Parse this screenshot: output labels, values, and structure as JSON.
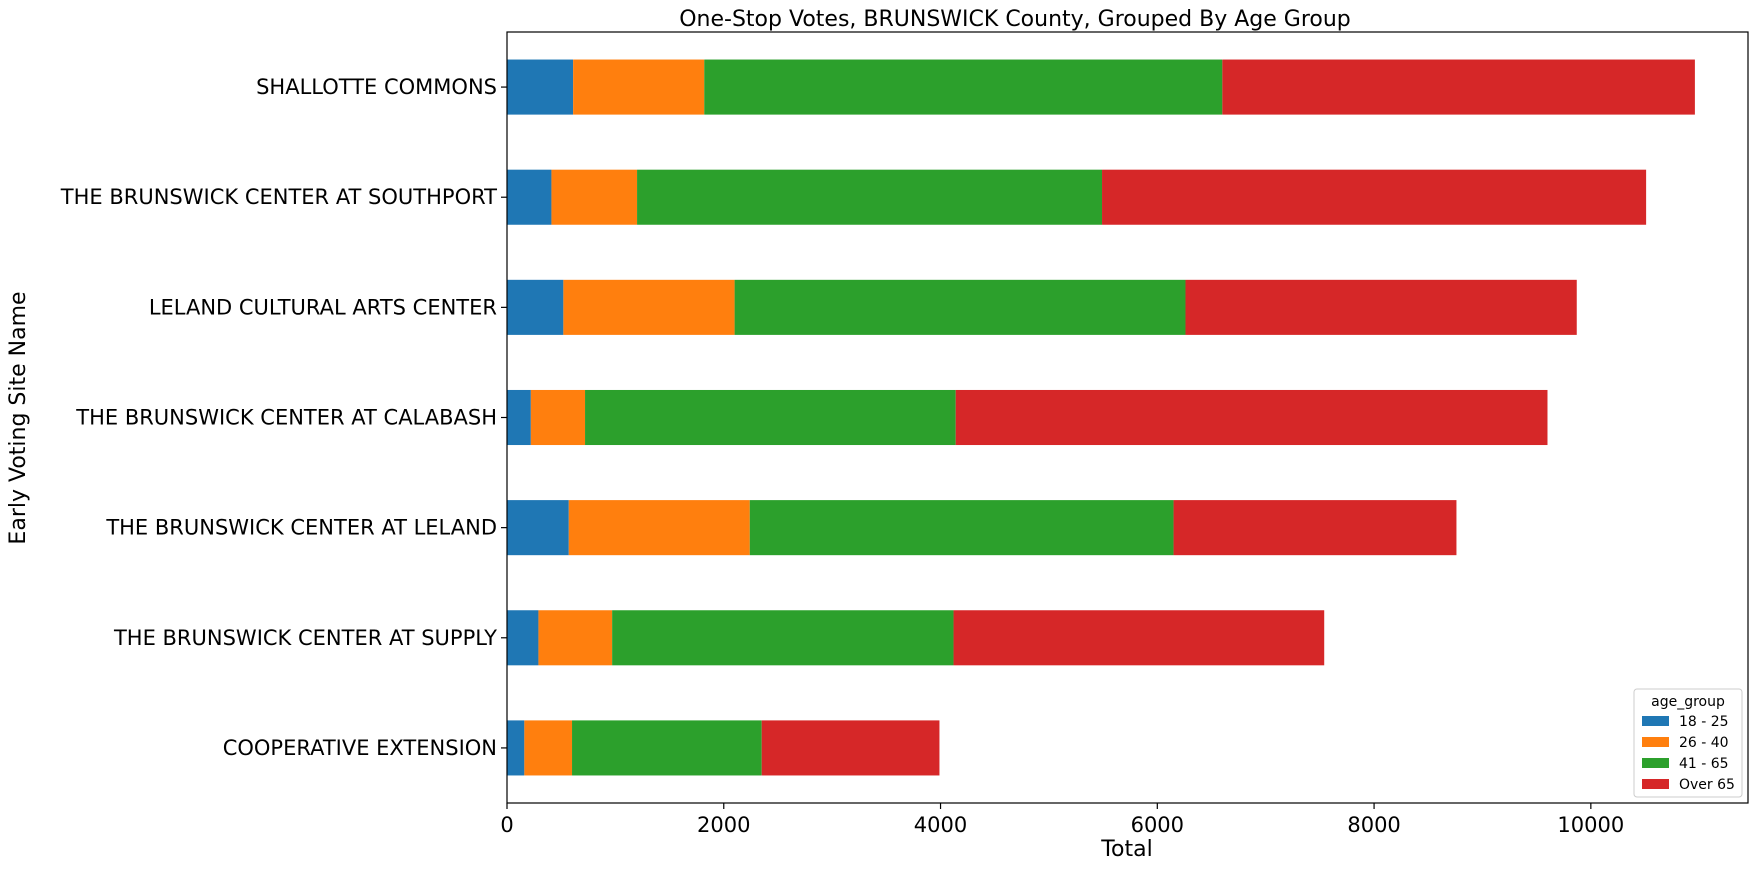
{
  "chart_data": {
    "type": "bar",
    "orientation": "horizontal",
    "stacked": true,
    "title": "One-Stop Votes, BRUNSWICK County, Grouped By Age Group",
    "xlabel": "Total",
    "ylabel": "Early Voting Site Name",
    "xlim": [
      0,
      11450
    ],
    "xticks": [
      0,
      2000,
      4000,
      6000,
      8000,
      10000
    ],
    "grid": false,
    "legend": {
      "title": "age_group",
      "placement": "lower-right"
    },
    "categories": [
      "SHALLOTTE COMMONS",
      "THE BRUNSWICK CENTER AT SOUTHPORT",
      "LELAND CULTURAL ARTS CENTER",
      "THE BRUNSWICK CENTER AT CALABASH",
      "THE BRUNSWICK CENTER AT LELAND",
      "THE BRUNSWICK CENTER AT SUPPLY",
      "COOPERATIVE EXTENSION"
    ],
    "series": [
      {
        "name": "18 - 25",
        "color": "#1f77b4",
        "values": [
          610,
          410,
          520,
          220,
          570,
          290,
          160
        ]
      },
      {
        "name": "26 - 40",
        "color": "#ff7f0e",
        "values": [
          1210,
          790,
          1580,
          500,
          1670,
          680,
          440
        ]
      },
      {
        "name": "41 - 65",
        "color": "#2ca02c",
        "values": [
          4780,
          4290,
          4160,
          3420,
          3910,
          3150,
          1750
        ]
      },
      {
        "name": "Over 65",
        "color": "#d62728",
        "values": [
          4360,
          5020,
          3610,
          5460,
          2610,
          3420,
          1640
        ]
      }
    ]
  }
}
